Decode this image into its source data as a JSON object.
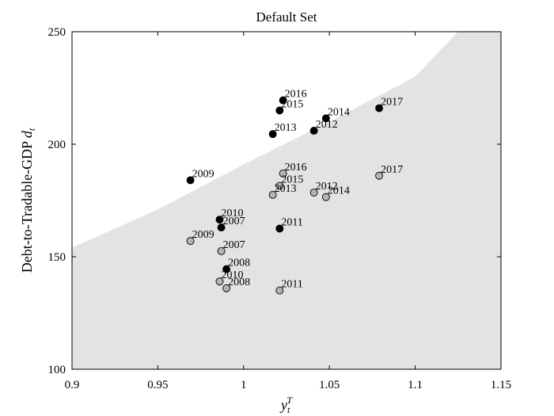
{
  "chart_data": {
    "type": "scatter",
    "title": "Default Set",
    "xlabel": {
      "base": "y",
      "sub": "t",
      "sup": "T"
    },
    "ylabel": {
      "text": "Debt-to-Tradable-GDP ",
      "var": "d",
      "sub": "t"
    },
    "xlim": [
      0.9,
      1.15
    ],
    "ylim": [
      100,
      250
    ],
    "xticks": [
      "0.9",
      "0.95",
      "1",
      "1.05",
      "1.1",
      "1.15"
    ],
    "yticks": [
      "100",
      "150",
      "200",
      "250"
    ],
    "colors": {
      "region": "#e3e3e3",
      "black_point": "#000000",
      "gray_point": "#b4b4b4"
    },
    "default_set_boundary": {
      "x": [
        0.9,
        0.95,
        1.0,
        1.05,
        1.1,
        1.125,
        1.15
      ],
      "y": [
        154,
        171,
        191,
        210,
        230,
        250,
        250
      ]
    },
    "series": [
      {
        "style": "black",
        "points": [
          {
            "label": "2016",
            "x": 1.023,
            "y": 219.5
          },
          {
            "label": "2015",
            "x": 1.021,
            "y": 215
          },
          {
            "label": "2014",
            "x": 1.048,
            "y": 211.5
          },
          {
            "label": "2017",
            "x": 1.079,
            "y": 216
          },
          {
            "label": "2013",
            "x": 1.017,
            "y": 204.5
          },
          {
            "label": "2012",
            "x": 1.041,
            "y": 206
          },
          {
            "label": "2009",
            "x": 0.969,
            "y": 184
          },
          {
            "label": "2010",
            "x": 0.986,
            "y": 166.5
          },
          {
            "label": "2007",
            "x": 0.987,
            "y": 163
          },
          {
            "label": "2011",
            "x": 1.021,
            "y": 162.5
          },
          {
            "label": "2008",
            "x": 0.99,
            "y": 144.5
          }
        ]
      },
      {
        "style": "gray",
        "points": [
          {
            "label": "2016",
            "x": 1.023,
            "y": 187
          },
          {
            "label": "2015",
            "x": 1.021,
            "y": 181.5
          },
          {
            "label": "2013",
            "x": 1.017,
            "y": 177.5
          },
          {
            "label": "2012",
            "x": 1.041,
            "y": 178.5
          },
          {
            "label": "2014",
            "x": 1.048,
            "y": 176.5
          },
          {
            "label": "2017",
            "x": 1.079,
            "y": 186
          },
          {
            "label": "2009",
            "x": 0.969,
            "y": 157
          },
          {
            "label": "2007",
            "x": 0.987,
            "y": 152.5
          },
          {
            "label": "2010",
            "x": 0.986,
            "y": 139
          },
          {
            "label": "2008",
            "x": 0.99,
            "y": 136
          },
          {
            "label": "2011",
            "x": 1.021,
            "y": 135
          }
        ]
      }
    ]
  }
}
